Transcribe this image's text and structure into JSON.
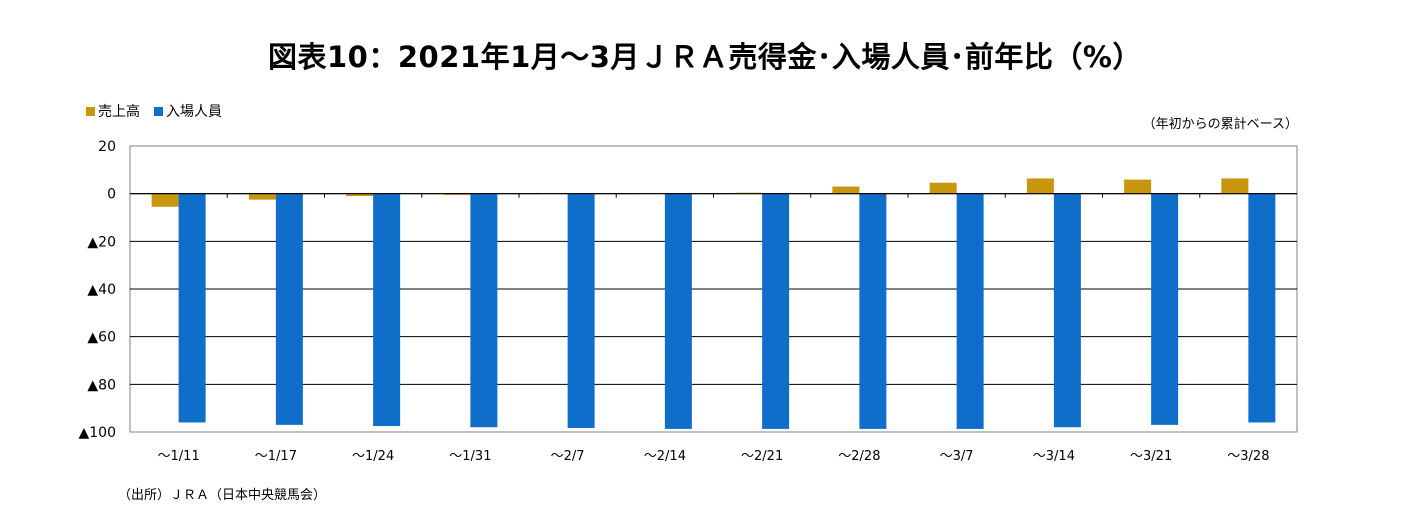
{
  "title": "図表10：2021年1月～3月ＪＲＡ売得金･入場人員･前年比（%）",
  "note": "（年初からの累計ベース）",
  "source": "（出所）ＪＲＡ（日本中央競馬会）",
  "colors": {
    "sales": "#C8960C",
    "attendance": "#0E6EC9",
    "grid": "#000000"
  },
  "chart_data": {
    "type": "bar",
    "categories": [
      "～1/11",
      "～1/17",
      "～1/24",
      "～1/31",
      "～2/7",
      "～2/14",
      "～2/21",
      "～2/28",
      "～3/7",
      "～3/14",
      "～3/21",
      "～3/28"
    ],
    "series": [
      {
        "name": "売上高",
        "values": [
          -5.5,
          -2.5,
          -1.0,
          -0.5,
          0.3,
          0.3,
          0.4,
          3.0,
          4.6,
          6.4,
          5.9,
          6.4
        ]
      },
      {
        "name": "入場人員",
        "values": [
          -96.0,
          -97.0,
          -97.5,
          -98.0,
          -98.3,
          -98.7,
          -98.7,
          -98.7,
          -98.7,
          -98.0,
          -97.0,
          -96.0
        ]
      }
    ],
    "ylim": [
      -100,
      20
    ],
    "yticks": [
      20,
      0,
      -20,
      -40,
      -60,
      -80,
      -100
    ],
    "ytick_labels": [
      "20",
      "0",
      "▲20",
      "▲40",
      "▲60",
      "▲80",
      "▲100"
    ],
    "grid": true,
    "legend": "top-left"
  }
}
